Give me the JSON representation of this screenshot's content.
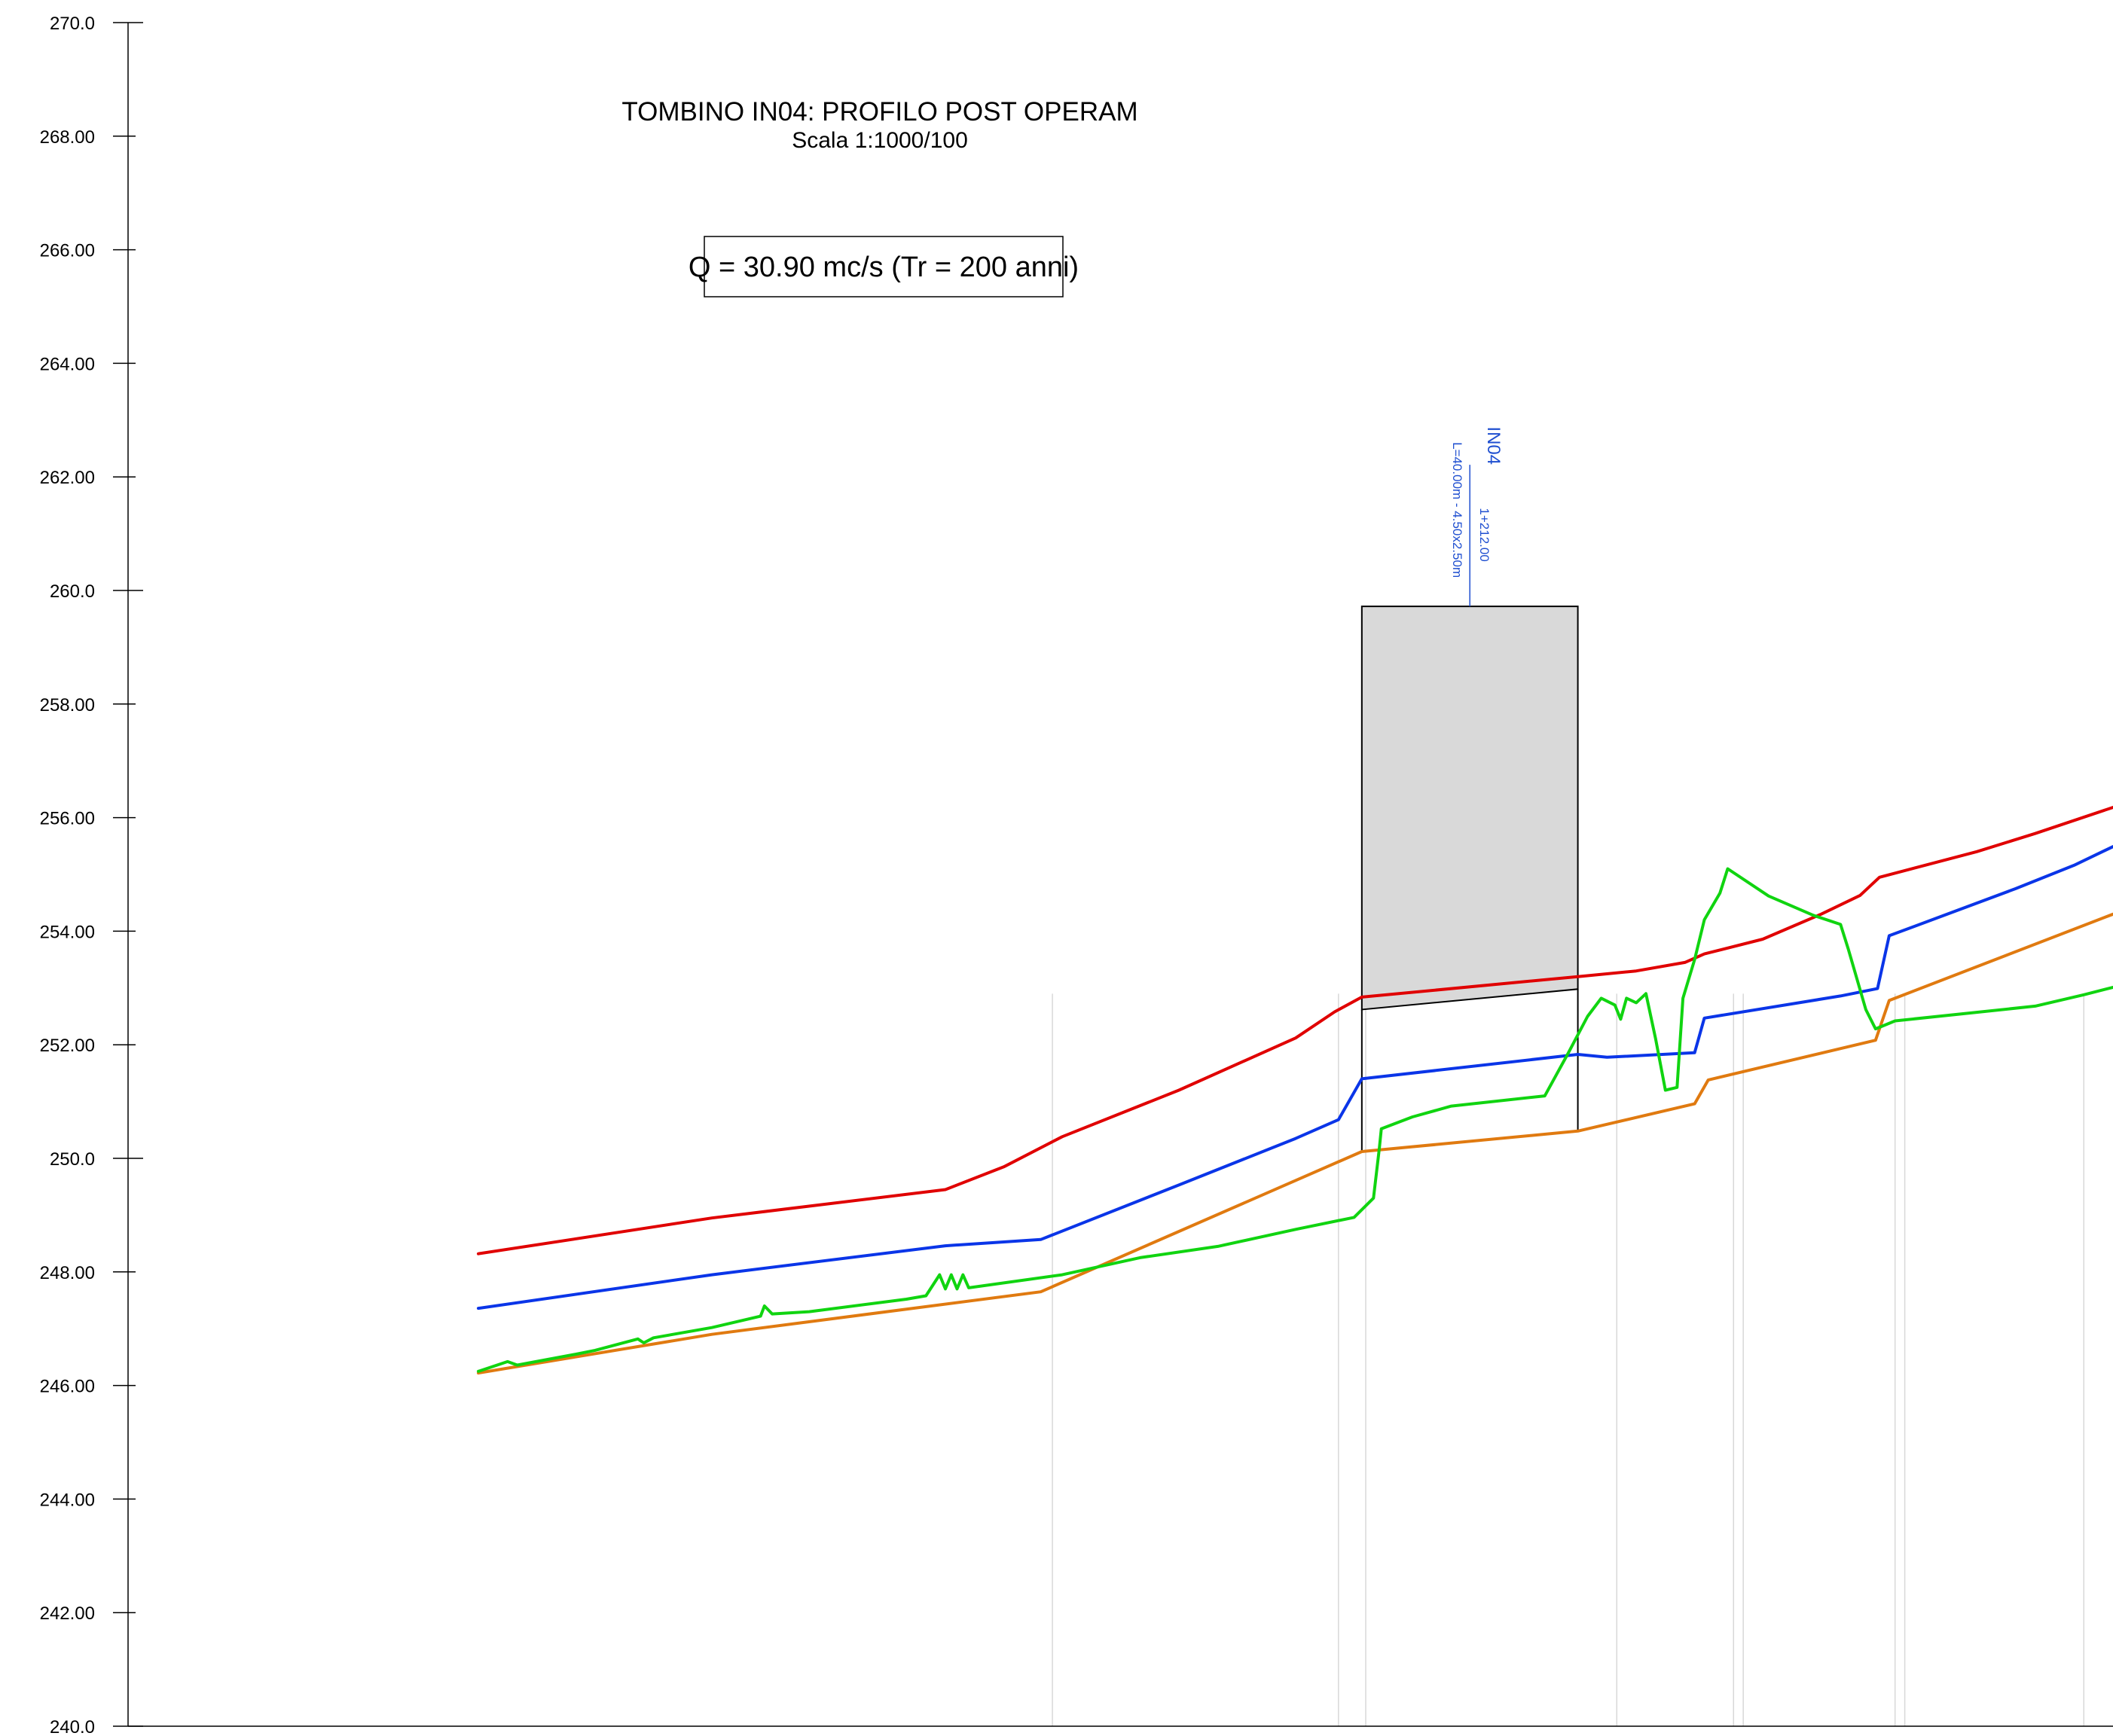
{
  "chart_data": {
    "type": "line",
    "title": "TOMBINO IN04: PROFILO POST OPERAM",
    "subtitle": "Scala 1:1000/100",
    "annotation": "Q = 30.90 mc/s (Tr = 200 anni)",
    "ylim": [
      240,
      270
    ],
    "y_tick_labels": [
      "240.0",
      "242.00",
      "244.00",
      "246.00",
      "248.00",
      "250.0",
      "252.00",
      "254.00",
      "256.00",
      "258.00",
      "260.0",
      "262.00",
      "264.00",
      "266.00",
      "268.00",
      "270.0"
    ],
    "xlim": [
      0,
      1020
    ],
    "grid": false,
    "culvert": {
      "name": "IN04",
      "chainage": "1+212.00",
      "dimensions": "L=40.00m - 4.50x2.50m",
      "x_start": 634,
      "x_end": 745,
      "top": 259.72,
      "soffit_start": 252.62,
      "soffit_end": 252.98,
      "invert_start": 250.12,
      "invert_end": 250.48,
      "fill_color": "#d9d9d9"
    },
    "sections_x": [
      475,
      622,
      636,
      765,
      825,
      830,
      908,
      913,
      1005
    ],
    "series": [
      {
        "color": "#e00000",
        "points": [
          [
            180,
            248.32
          ],
          [
            300,
            248.95
          ],
          [
            420,
            249.45
          ],
          [
            450,
            249.85
          ],
          [
            480,
            250.38
          ],
          [
            540,
            251.2
          ],
          [
            600,
            252.12
          ],
          [
            620,
            252.58
          ],
          [
            634,
            252.84
          ],
          [
            745,
            253.2
          ],
          [
            775,
            253.3
          ],
          [
            800,
            253.45
          ],
          [
            810,
            253.6
          ],
          [
            840,
            253.86
          ],
          [
            870,
            254.3
          ],
          [
            890,
            254.63
          ],
          [
            900,
            254.95
          ],
          [
            950,
            255.4
          ],
          [
            980,
            255.72
          ],
          [
            1020,
            256.18
          ]
        ]
      },
      {
        "color": "#0a35e8",
        "points": [
          [
            180,
            247.36
          ],
          [
            300,
            247.95
          ],
          [
            420,
            248.46
          ],
          [
            469,
            248.57
          ],
          [
            540,
            249.53
          ],
          [
            600,
            250.35
          ],
          [
            622,
            250.68
          ],
          [
            634,
            251.4
          ],
          [
            745,
            251.83
          ],
          [
            760,
            251.78
          ],
          [
            805,
            251.86
          ],
          [
            810,
            252.47
          ],
          [
            880,
            252.86
          ],
          [
            899,
            252.99
          ],
          [
            905,
            253.92
          ],
          [
            970,
            254.75
          ],
          [
            1000,
            255.16
          ],
          [
            1020,
            255.49
          ]
        ]
      },
      {
        "color": "#e07a10",
        "points": [
          [
            180,
            246.22
          ],
          [
            300,
            246.9
          ],
          [
            469,
            247.65
          ],
          [
            634,
            250.12
          ],
          [
            745,
            250.48
          ],
          [
            805,
            250.96
          ],
          [
            812,
            251.38
          ],
          [
            898,
            252.08
          ],
          [
            905,
            252.78
          ],
          [
            1020,
            254.3
          ]
        ]
      },
      {
        "color": "#10d410",
        "points": [
          [
            180,
            246.25
          ],
          [
            195,
            246.42
          ],
          [
            200,
            246.36
          ],
          [
            230,
            246.55
          ],
          [
            240,
            246.62
          ],
          [
            262,
            246.82
          ],
          [
            265,
            246.75
          ],
          [
            270,
            246.84
          ],
          [
            300,
            247.02
          ],
          [
            325,
            247.22
          ],
          [
            327,
            247.4
          ],
          [
            331,
            247.26
          ],
          [
            350,
            247.3
          ],
          [
            400,
            247.52
          ],
          [
            410,
            247.58
          ],
          [
            417,
            247.95
          ],
          [
            420,
            247.7
          ],
          [
            423,
            247.95
          ],
          [
            426,
            247.7
          ],
          [
            429,
            247.95
          ],
          [
            432,
            247.72
          ],
          [
            480,
            247.95
          ],
          [
            520,
            248.25
          ],
          [
            560,
            248.45
          ],
          [
            600,
            248.75
          ],
          [
            630,
            248.96
          ],
          [
            640,
            249.3
          ],
          [
            643,
            250.18
          ],
          [
            644,
            250.52
          ],
          [
            660,
            250.73
          ],
          [
            680,
            250.92
          ],
          [
            728,
            251.1
          ],
          [
            740,
            251.85
          ],
          [
            750,
            252.5
          ],
          [
            757,
            252.82
          ],
          [
            764,
            252.7
          ],
          [
            767,
            252.45
          ],
          [
            770,
            252.82
          ],
          [
            775,
            252.74
          ],
          [
            780,
            252.9
          ],
          [
            785,
            252.1
          ],
          [
            790,
            251.2
          ],
          [
            796,
            251.25
          ],
          [
            799,
            252.82
          ],
          [
            805,
            253.5
          ],
          [
            810,
            254.2
          ],
          [
            818,
            254.67
          ],
          [
            822,
            255.1
          ],
          [
            843,
            254.62
          ],
          [
            866,
            254.28
          ],
          [
            880,
            254.12
          ],
          [
            884,
            253.68
          ],
          [
            893,
            252.62
          ],
          [
            898,
            252.28
          ],
          [
            908,
            252.42
          ],
          [
            980,
            252.68
          ],
          [
            1005,
            252.88
          ],
          [
            1030,
            253.1
          ]
        ]
      }
    ]
  }
}
